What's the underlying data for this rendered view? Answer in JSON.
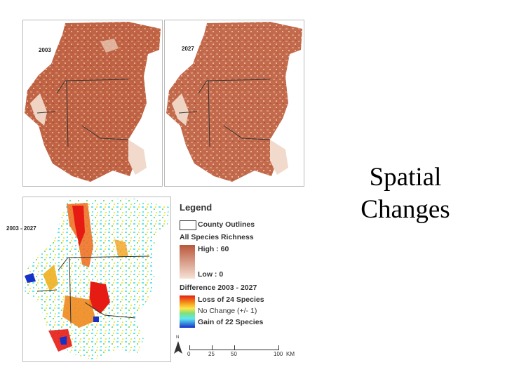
{
  "maps": {
    "map_2003": {
      "label": "2003"
    },
    "map_2027": {
      "label": "2027"
    },
    "map_diff": {
      "label": "2003 - 2027"
    }
  },
  "legend": {
    "title": "Legend",
    "county_label": "County Outlines",
    "richness_heading": "All Species Richness",
    "high_label": "High : 60",
    "low_label": "Low : 0",
    "difference_heading": "Difference 2003 - 2027",
    "loss_label": "Loss of 24 Species",
    "nochange_label": "No Change (+/- 1)",
    "gain_label": "Gain of 22 Species"
  },
  "scale_bar": {
    "north": "N",
    "ticks": [
      "0",
      "25",
      "50",
      "100"
    ],
    "unit": "KM"
  },
  "slide_title": {
    "line1": "Spatial",
    "line2": "Changes"
  },
  "colors": {
    "richness_high": "#b9573a",
    "richness_low": "#f6e2d6",
    "loss": "#e61c14",
    "nochange": "#5ee8f0",
    "gain": "#1432c8"
  }
}
